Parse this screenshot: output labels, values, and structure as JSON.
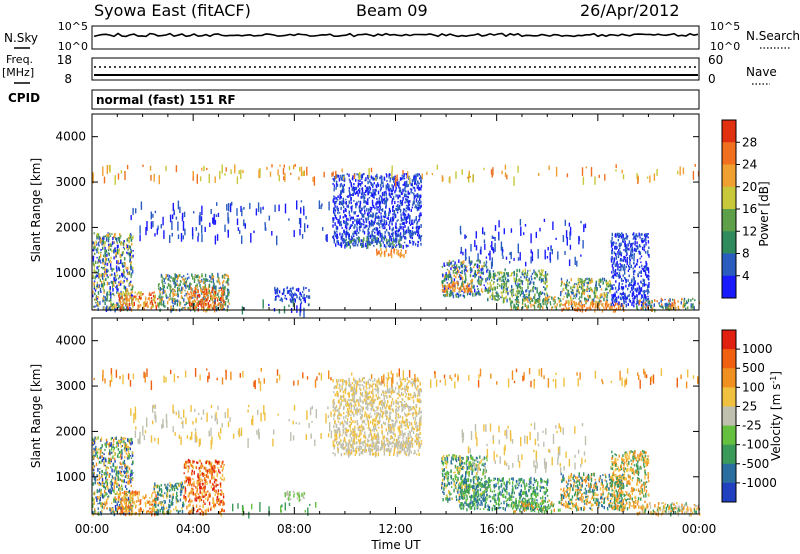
{
  "header": {
    "title_left": "Syowa East (fitACF)",
    "title_center": "Beam 09",
    "title_right": "26/Apr/2012"
  },
  "status_panels": {
    "nsky_label": "N.Sky",
    "nsearch_label": "N.Search",
    "nsky_ticks": [
      "10^5",
      "10^0"
    ],
    "nsearch_ticks": [
      "10^5",
      "10^0"
    ],
    "freq_label": "Freq.",
    "freq_unit": "[MHz]",
    "freq_ticks": [
      "18",
      "8"
    ],
    "nave_label": "Nave",
    "nave_ticks": [
      "60",
      "0"
    ],
    "cpid_label": "CPID",
    "cpid_text": "normal (fast) 151 RF"
  },
  "chart_data": [
    {
      "type": "heatmap",
      "name": "power",
      "ylabel": "Slant Range [km]",
      "ylim": [
        180,
        4500
      ],
      "yticks": [
        1000,
        2000,
        3000,
        4000
      ],
      "xlabel": "",
      "xlim": [
        0,
        24
      ],
      "xticks": [
        "00:00",
        "04:00",
        "08:00",
        "12:00",
        "16:00",
        "20:00",
        "00:00"
      ],
      "colorbar": {
        "label": "Power [dB]",
        "ticks": [
          "4",
          "8",
          "12",
          "16",
          "20",
          "24",
          "28"
        ],
        "colors": [
          "#1a1aff",
          "#2a5cc0",
          "#2f8a5e",
          "#5ea04a",
          "#c8c83a",
          "#f0a030",
          "#f07020",
          "#e03010"
        ]
      },
      "regions": [
        {
          "t": [
            0.0,
            1.6
          ],
          "r": [
            200,
            1900
          ],
          "c": [
            0,
            1,
            2,
            3,
            4,
            5
          ]
        },
        {
          "t": [
            1.0,
            2.6
          ],
          "r": [
            200,
            600
          ],
          "c": [
            4,
            5,
            6,
            7
          ]
        },
        {
          "t": [
            2.6,
            5.4
          ],
          "r": [
            200,
            1000
          ],
          "c": [
            1,
            2,
            3,
            5
          ]
        },
        {
          "t": [
            3.8,
            5.2
          ],
          "r": [
            200,
            700
          ],
          "c": [
            5,
            6,
            7
          ]
        },
        {
          "t": [
            7.2,
            8.6
          ],
          "r": [
            400,
            700
          ],
          "c": [
            0,
            1
          ]
        },
        {
          "t": [
            9.5,
            13.0
          ],
          "r": [
            1600,
            3200
          ],
          "c": [
            0,
            1
          ]
        },
        {
          "t": [
            10.0,
            12.2
          ],
          "r": [
            1600,
            1800
          ],
          "c": [
            1,
            2,
            3
          ]
        },
        {
          "t": [
            11.2,
            12.4
          ],
          "r": [
            1400,
            1550
          ],
          "c": [
            5,
            6
          ]
        },
        {
          "t": [
            13.8,
            15.6
          ],
          "r": [
            500,
            1300
          ],
          "c": [
            0,
            1,
            2,
            3,
            5
          ]
        },
        {
          "t": [
            13.8,
            15.0
          ],
          "r": [
            600,
            800
          ],
          "c": [
            5,
            6
          ]
        },
        {
          "t": [
            15.6,
            18.0
          ],
          "r": [
            400,
            1100
          ],
          "c": [
            1,
            2,
            3,
            4
          ]
        },
        {
          "t": [
            16.5,
            18.5
          ],
          "r": [
            250,
            500
          ],
          "c": [
            2,
            3,
            5
          ]
        },
        {
          "t": [
            18.5,
            20.5
          ],
          "r": [
            300,
            900
          ],
          "c": [
            1,
            2,
            3,
            4,
            5
          ]
        },
        {
          "t": [
            18.5,
            21.0
          ],
          "r": [
            200,
            400
          ],
          "c": [
            5,
            6
          ]
        },
        {
          "t": [
            20.5,
            22.0
          ],
          "r": [
            300,
            1900
          ],
          "c": [
            0,
            1
          ]
        },
        {
          "t": [
            21.5,
            24.0
          ],
          "r": [
            200,
            450
          ],
          "c": [
            1,
            2,
            3,
            5,
            6
          ]
        }
      ],
      "sparse": [
        {
          "t": [
            0,
            24
          ],
          "r": [
            3100,
            3400
          ],
          "c": [
            4,
            5,
            6
          ]
        },
        {
          "t": [
            1.5,
            9.5
          ],
          "r": [
            1800,
            2600
          ],
          "c": [
            0,
            1
          ]
        },
        {
          "t": [
            14.5,
            19.5
          ],
          "r": [
            1200,
            2200
          ],
          "c": [
            0,
            1
          ]
        },
        {
          "t": [
            5.5,
            9.0
          ],
          "r": [
            200,
            450
          ],
          "c": [
            0,
            1,
            2
          ]
        }
      ]
    },
    {
      "type": "heatmap",
      "name": "velocity",
      "ylabel": "Slant Range [km]",
      "ylim": [
        180,
        4500
      ],
      "yticks": [
        1000,
        2000,
        3000,
        4000
      ],
      "xlabel": "Time UT",
      "xlim": [
        0,
        24
      ],
      "xticks": [
        "00:00",
        "04:00",
        "08:00",
        "12:00",
        "16:00",
        "20:00",
        "00:00"
      ],
      "colorbar": {
        "label": "Velocity [m s^-1]",
        "ticks": [
          "1000",
          "500",
          "100",
          "25",
          "-25",
          "-100",
          "-500",
          "-1000"
        ],
        "colors": [
          "#2040c0",
          "#2a6ea0",
          "#3a9a5a",
          "#66c040",
          "#c0c0b0",
          "#f0c040",
          "#f09020",
          "#f06010",
          "#e02010"
        ]
      },
      "regions": [
        {
          "t": [
            0.0,
            1.6
          ],
          "r": [
            200,
            1900
          ],
          "c": [
            0,
            1,
            2,
            3,
            5,
            6
          ]
        },
        {
          "t": [
            1.0,
            2.6
          ],
          "r": [
            200,
            700
          ],
          "c": [
            5,
            6,
            7
          ]
        },
        {
          "t": [
            3.6,
            5.2
          ],
          "r": [
            200,
            1400
          ],
          "c": [
            5,
            6,
            7,
            8
          ]
        },
        {
          "t": [
            2.4,
            3.6
          ],
          "r": [
            200,
            900
          ],
          "c": [
            1,
            2,
            5
          ]
        },
        {
          "t": [
            7.6,
            8.4
          ],
          "r": [
            500,
            700
          ],
          "c": [
            3,
            4
          ]
        },
        {
          "t": [
            9.5,
            13.0
          ],
          "r": [
            1500,
            3200
          ],
          "c": [
            4,
            5
          ]
        },
        {
          "t": [
            9.8,
            12.6
          ],
          "r": [
            1600,
            1800
          ],
          "c": [
            4
          ]
        },
        {
          "t": [
            13.8,
            15.6
          ],
          "r": [
            500,
            1500
          ],
          "c": [
            1,
            2,
            3,
            5
          ]
        },
        {
          "t": [
            14.5,
            18.0
          ],
          "r": [
            300,
            1000
          ],
          "c": [
            1,
            2,
            3
          ]
        },
        {
          "t": [
            16.5,
            18.5
          ],
          "r": [
            250,
            500
          ],
          "c": [
            2,
            3,
            6
          ]
        },
        {
          "t": [
            18.5,
            21.0
          ],
          "r": [
            300,
            1100
          ],
          "c": [
            1,
            2,
            5,
            6
          ]
        },
        {
          "t": [
            20.5,
            22.0
          ],
          "r": [
            300,
            1600
          ],
          "c": [
            2,
            5,
            6
          ]
        },
        {
          "t": [
            21.5,
            24.0
          ],
          "r": [
            200,
            450
          ],
          "c": [
            2,
            4,
            5,
            6
          ]
        }
      ],
      "sparse": [
        {
          "t": [
            0,
            24
          ],
          "r": [
            3100,
            3400
          ],
          "c": [
            5,
            6,
            7
          ]
        },
        {
          "t": [
            1.5,
            9.5
          ],
          "r": [
            1800,
            2600
          ],
          "c": [
            4,
            5
          ]
        },
        {
          "t": [
            14.5,
            19.5
          ],
          "r": [
            1200,
            2200
          ],
          "c": [
            4,
            5
          ]
        },
        {
          "t": [
            5.5,
            9.0
          ],
          "r": [
            200,
            450
          ],
          "c": [
            2,
            3
          ]
        }
      ]
    }
  ]
}
